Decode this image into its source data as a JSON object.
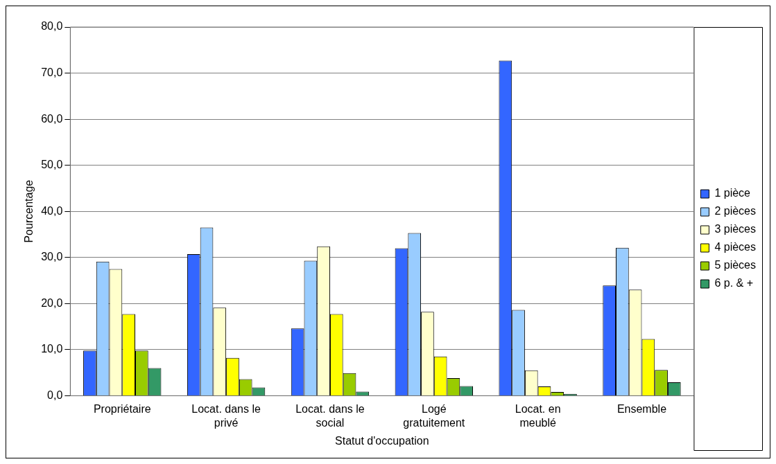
{
  "chart_data": {
    "type": "bar",
    "xlabel": "Statut d'occupation",
    "ylabel": "Pourcentage",
    "categories": [
      "Propriétaire",
      "Locat. dans le privé",
      "Locat. dans le social",
      "Logé gratuitement",
      "Locat. en meublé",
      "Ensemble"
    ],
    "series": [
      {
        "name": "1 pièce",
        "color": "#3366ff",
        "values": [
          9.8,
          30.7,
          14.6,
          32.0,
          72.7,
          23.9
        ]
      },
      {
        "name": "2 pièces",
        "color": "#99ccff",
        "values": [
          29.1,
          36.5,
          29.3,
          35.3,
          18.6,
          32.1
        ]
      },
      {
        "name": "3 pièces",
        "color": "#ffffcc",
        "values": [
          27.5,
          19.1,
          32.4,
          18.2,
          5.5,
          23.0
        ]
      },
      {
        "name": "4 pièces",
        "color": "#ffff00",
        "values": [
          17.7,
          8.2,
          17.7,
          8.5,
          2.0,
          12.3
        ]
      },
      {
        "name": "5 pièces",
        "color": "#99cc00",
        "values": [
          9.8,
          3.6,
          4.9,
          3.8,
          0.8,
          5.6
        ]
      },
      {
        "name": "6 p. & +",
        "color": "#339966",
        "values": [
          6.0,
          1.8,
          0.9,
          2.1,
          0.4,
          2.9
        ]
      }
    ],
    "ylim": [
      0,
      80
    ],
    "yticks": [
      {
        "value": 0,
        "label": "0,0"
      },
      {
        "value": 10,
        "label": "10,0"
      },
      {
        "value": 20,
        "label": "20,0"
      },
      {
        "value": 30,
        "label": "30,0"
      },
      {
        "value": 40,
        "label": "40,0"
      },
      {
        "value": 50,
        "label": "50,0"
      },
      {
        "value": 60,
        "label": "60,0"
      },
      {
        "value": 70,
        "label": "70,0"
      },
      {
        "value": 80,
        "label": "80,0"
      }
    ],
    "grid": "y",
    "legend": "right"
  }
}
